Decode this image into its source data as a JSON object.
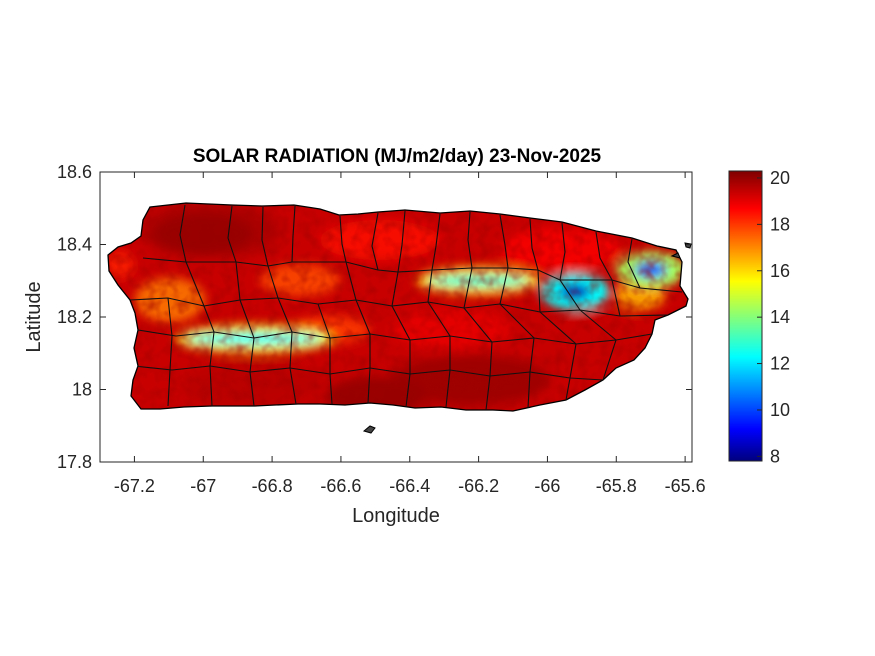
{
  "figure": {
    "title": "SOLAR RADIATION (MJ/m2/day) 23-Nov-2025",
    "xlabel": "Longitude",
    "ylabel": "Latitude"
  },
  "colors": {
    "background": "#ffffff",
    "axis": "#262626",
    "border": "#000000",
    "jet_low": "#00007f",
    "jet_high": "#7f0000"
  },
  "chart_data": {
    "type": "heatmap",
    "title": "SOLAR RADIATION (MJ/m2/day) 23-Nov-2025",
    "xlabel": "Longitude",
    "ylabel": "Latitude",
    "xlim": [
      -67.3,
      -65.58
    ],
    "ylim": [
      17.8,
      18.6
    ],
    "x_ticks": [
      -67.2,
      -67,
      -66.8,
      -66.6,
      -66.4,
      -66.2,
      -66,
      -65.8,
      -65.6
    ],
    "x_tick_labels": [
      "-67.2",
      "-67",
      "-66.8",
      "-66.6",
      "-66.4",
      "-66.2",
      "-66",
      "-65.8",
      "-65.6"
    ],
    "y_ticks": [
      17.8,
      18,
      18.2,
      18.4,
      18.6
    ],
    "y_tick_labels": [
      "17.8",
      "18",
      "18.2",
      "18.4",
      "18.6"
    ],
    "colormap": "jet",
    "clim": [
      7.8,
      20.3
    ],
    "colorbar_ticks": [
      8,
      10,
      12,
      14,
      16,
      18,
      20
    ],
    "colorbar_tick_labels": [
      "8",
      "10",
      "12",
      "14",
      "16",
      "18",
      "20"
    ],
    "colorbar_position": "right",
    "region": "Puerto Rico",
    "features": [
      {
        "name": "low band south-west",
        "lon_range": [
          -67.05,
          -66.65
        ],
        "lat": 18.14,
        "value": 12.5
      },
      {
        "name": "low band center-east",
        "lon_range": [
          -66.35,
          -66.05
        ],
        "lat": 18.3,
        "value": 13
      },
      {
        "name": "minimum core",
        "lon": -65.92,
        "lat": 18.27,
        "value": 8.5
      },
      {
        "name": "north-east low",
        "lon": -65.7,
        "lat": 18.33,
        "value": 10.5
      },
      {
        "name": "high north-west",
        "lon": -67.0,
        "lat": 18.43,
        "value": 20
      },
      {
        "name": "high south",
        "lon": -66.5,
        "lat": 17.98,
        "value": 20
      }
    ],
    "grid": false
  }
}
